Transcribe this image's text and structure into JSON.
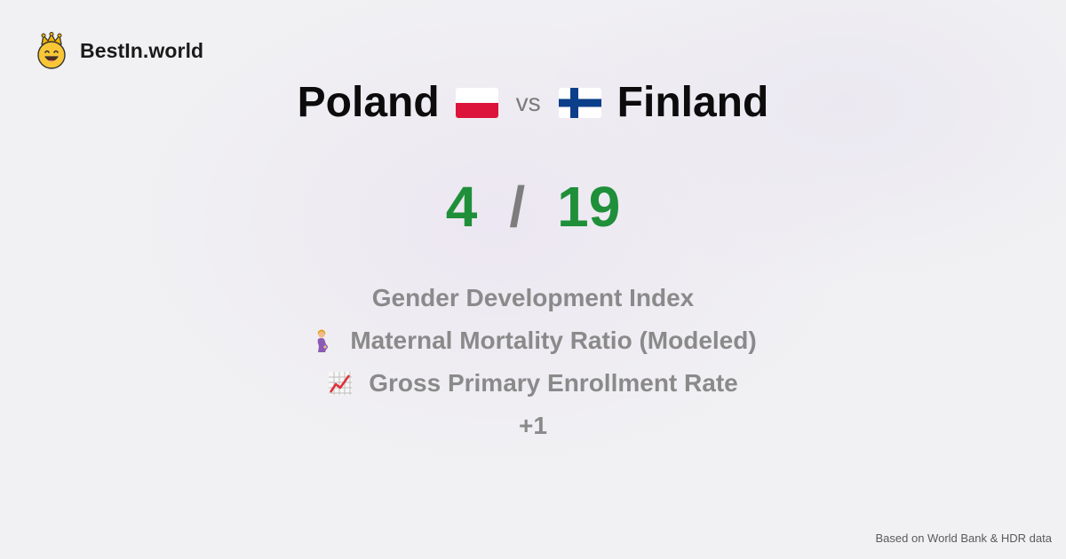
{
  "brand": {
    "name": "BestIn.world",
    "icon": "crown-smiley-icon"
  },
  "comparison": {
    "left_country": "Poland",
    "vs_label": "vs",
    "right_country": "Finland",
    "left_flag": "poland-flag-icon",
    "right_flag": "finland-flag-icon"
  },
  "score": {
    "left": "4",
    "separator": "/",
    "right": "19",
    "color": "#1f8f3a"
  },
  "metrics": [
    {
      "label": "Gender Development Index",
      "icon": ""
    },
    {
      "label": "Maternal Mortality Ratio (Modeled)",
      "icon": "pregnant-woman-icon"
    },
    {
      "label": "Gross Primary Enrollment Rate",
      "icon": "chart-increasing-icon"
    }
  ],
  "more_label": "+1",
  "footer": {
    "source": "Based on World Bank & HDR data"
  }
}
